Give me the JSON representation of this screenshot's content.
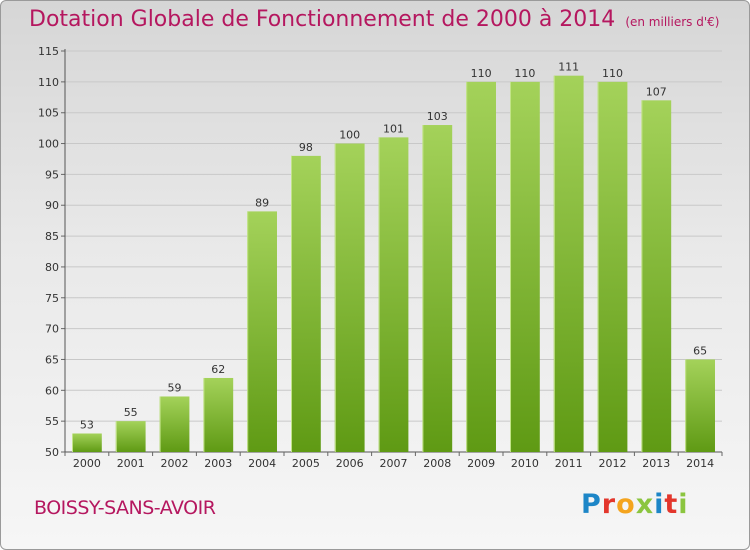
{
  "title": "Dotation Globale de Fonctionnement de 2000 à 2014",
  "subtitle": "(en milliers d'€)",
  "city": "BOISSY-SANS-AVOIR",
  "logo": {
    "letters": [
      "P",
      "r",
      "o",
      "x",
      "i",
      "t",
      "i"
    ]
  },
  "colors": {
    "title": "#b5175f",
    "bar_top": "#a4d25a",
    "bar_bottom": "#5f9a14",
    "grid": "#c8c8c8"
  },
  "chart_data": {
    "type": "bar",
    "categories": [
      "2000",
      "2001",
      "2002",
      "2003",
      "2004",
      "2005",
      "2006",
      "2007",
      "2008",
      "2009",
      "2010",
      "2011",
      "2012",
      "2013",
      "2014"
    ],
    "values": [
      53,
      55,
      59,
      62,
      89,
      98,
      100,
      101,
      103,
      110,
      110,
      111,
      110,
      107,
      65
    ],
    "ylim": [
      50,
      115
    ],
    "yticks": [
      50,
      55,
      60,
      65,
      70,
      75,
      80,
      85,
      90,
      95,
      100,
      105,
      110,
      115
    ],
    "grid": true,
    "title": "Dotation Globale de Fonctionnement de 2000 à 2014",
    "xlabel": "",
    "ylabel": ""
  }
}
